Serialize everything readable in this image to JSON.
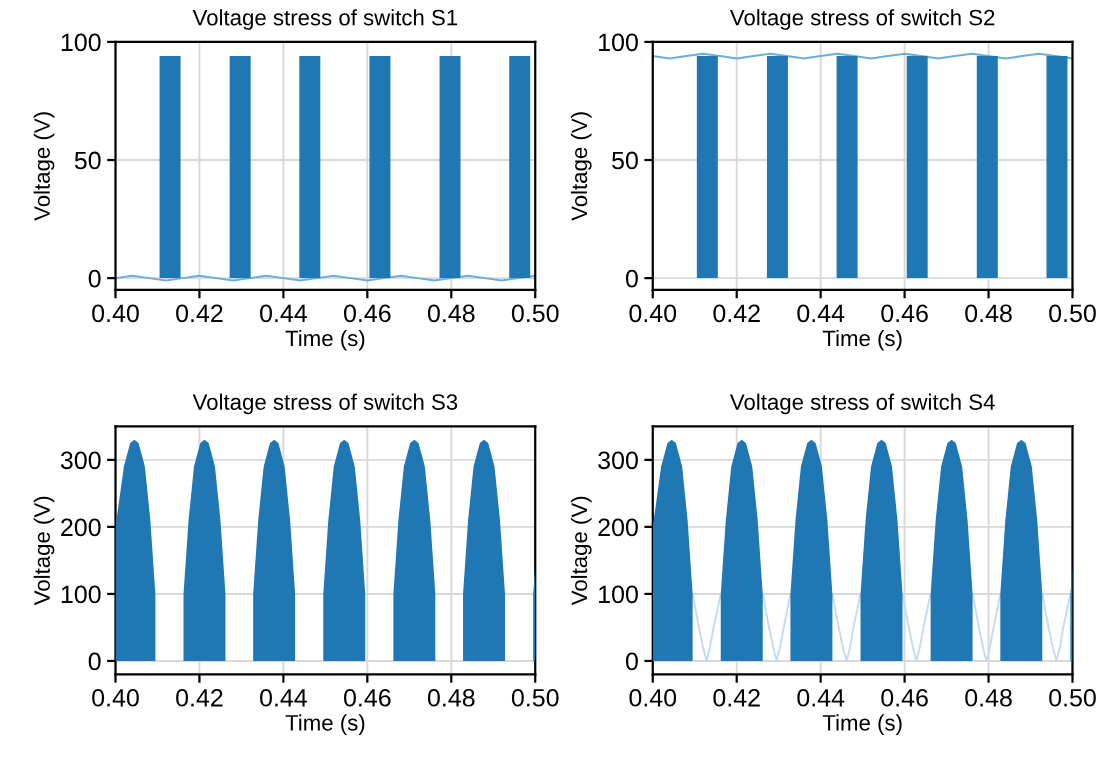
{
  "chart_data": [
    {
      "type": "area",
      "title": "Voltage stress of switch S1",
      "xlabel": "Time (s)",
      "ylabel": "Voltage (V)",
      "xlim": [
        0.4,
        0.5
      ],
      "ylim": [
        -5,
        100
      ],
      "xticks": [
        {
          "value": 0.4,
          "label": "0.40"
        },
        {
          "value": 0.42,
          "label": "0.42"
        },
        {
          "value": 0.44,
          "label": "0.44"
        },
        {
          "value": 0.46,
          "label": "0.46"
        },
        {
          "value": 0.48,
          "label": "0.48"
        },
        {
          "value": 0.5,
          "label": "0.50"
        }
      ],
      "yticks": [
        0,
        50,
        100
      ],
      "grid": true,
      "series": [
        {
          "type": "line",
          "color": "#6baed6",
          "x": [
            0.4,
            0.404,
            0.408,
            0.412,
            0.416,
            0.42,
            0.424,
            0.428,
            0.432,
            0.436,
            0.44,
            0.444,
            0.448,
            0.452,
            0.456,
            0.46,
            0.464,
            0.468,
            0.472,
            0.476,
            0.48,
            0.484,
            0.488,
            0.492,
            0.496,
            0.5
          ],
          "values": [
            0,
            1,
            0,
            -1,
            0,
            1,
            0,
            -1,
            0,
            1,
            0,
            -1,
            0,
            1,
            0,
            -1,
            0,
            1,
            0,
            -1,
            0,
            1,
            0,
            -1,
            0,
            1
          ]
        },
        {
          "color": "#1f77b4",
          "x": [
            0.4105,
            0.4105,
            0.4155,
            0.4155,
            0.4272,
            0.4272,
            0.4322,
            0.4322,
            0.4438,
            0.4438,
            0.4488,
            0.4488,
            0.4605,
            0.4605,
            0.4655,
            0.4655,
            0.4772,
            0.4772,
            0.4822,
            0.4822,
            0.4938,
            0.4938,
            0.4988,
            0.4988
          ],
          "values": [
            0,
            94,
            94,
            0,
            0,
            94,
            94,
            0,
            0,
            94,
            94,
            0,
            0,
            94,
            94,
            0,
            0,
            94,
            94,
            0,
            0,
            94,
            94,
            0
          ]
        }
      ]
    },
    {
      "type": "area",
      "title": "Voltage stress of switch S2",
      "xlabel": "Time (s)",
      "ylabel": "Voltage (V)",
      "xlim": [
        0.4,
        0.5
      ],
      "ylim": [
        -5,
        100
      ],
      "xticks": [
        {
          "value": 0.4,
          "label": "0.40"
        },
        {
          "value": 0.42,
          "label": "0.42"
        },
        {
          "value": 0.44,
          "label": "0.44"
        },
        {
          "value": 0.46,
          "label": "0.46"
        },
        {
          "value": 0.48,
          "label": "0.48"
        },
        {
          "value": 0.5,
          "label": "0.50"
        }
      ],
      "yticks": [
        0,
        50,
        100
      ],
      "grid": true,
      "series": [
        {
          "type": "line",
          "color": "#6baed6",
          "x": [
            0.4,
            0.404,
            0.408,
            0.412,
            0.416,
            0.42,
            0.424,
            0.428,
            0.432,
            0.436,
            0.44,
            0.444,
            0.448,
            0.452,
            0.456,
            0.46,
            0.464,
            0.468,
            0.472,
            0.476,
            0.48,
            0.484,
            0.488,
            0.492,
            0.496,
            0.5
          ],
          "values": [
            94,
            93,
            94,
            95,
            94,
            93,
            94,
            95,
            94,
            93,
            94,
            95,
            94,
            93,
            94,
            95,
            94,
            93,
            94,
            95,
            94,
            93,
            94,
            95,
            94,
            93
          ]
        },
        {
          "color": "#1f77b4",
          "x": [
            0.4105,
            0.4105,
            0.4155,
            0.4155,
            0.4272,
            0.4272,
            0.4322,
            0.4322,
            0.4438,
            0.4438,
            0.4488,
            0.4488,
            0.4605,
            0.4605,
            0.4655,
            0.4655,
            0.4772,
            0.4772,
            0.4822,
            0.4822,
            0.4938,
            0.4938,
            0.4988,
            0.4988
          ],
          "values": [
            0,
            94,
            94,
            0,
            0,
            94,
            94,
            0,
            0,
            94,
            94,
            0,
            0,
            94,
            94,
            0,
            0,
            94,
            94,
            0,
            0,
            94,
            94,
            0
          ]
        }
      ]
    },
    {
      "type": "area",
      "title": "Voltage stress of switch S3",
      "xlabel": "Time (s)",
      "ylabel": "Voltage (V)",
      "xlim": [
        0.4,
        0.5
      ],
      "ylim": [
        -20,
        350
      ],
      "xticks": [
        {
          "value": 0.4,
          "label": "0.40"
        },
        {
          "value": 0.42,
          "label": "0.42"
        },
        {
          "value": 0.44,
          "label": "0.44"
        },
        {
          "value": 0.46,
          "label": "0.46"
        },
        {
          "value": 0.48,
          "label": "0.48"
        },
        {
          "value": 0.5,
          "label": "0.50"
        }
      ],
      "yticks": [
        0,
        100,
        200,
        300
      ],
      "grid": true,
      "series": [
        {
          "color": "#1f77b4",
          "x": [
            0.4,
            0.4,
            0.402,
            0.4035,
            0.4045,
            0.4055,
            0.407,
            0.4083,
            0.4095,
            0.4095,
            0.4162,
            0.4162,
            0.4174,
            0.4187,
            0.4202,
            0.4212,
            0.4222,
            0.4237,
            0.425,
            0.4262,
            0.4262,
            0.4328,
            0.4328,
            0.434,
            0.4353,
            0.4368,
            0.4378,
            0.4388,
            0.4403,
            0.4416,
            0.4428,
            0.4428,
            0.4495,
            0.4495,
            0.4507,
            0.452,
            0.4535,
            0.4545,
            0.4555,
            0.457,
            0.4583,
            0.4595,
            0.4595,
            0.4662,
            0.4662,
            0.4674,
            0.4687,
            0.4702,
            0.4712,
            0.4722,
            0.4737,
            0.475,
            0.4762,
            0.4762,
            0.4828,
            0.4828,
            0.484,
            0.4853,
            0.4868,
            0.4878,
            0.4888,
            0.4903,
            0.4916,
            0.4928,
            0.4928,
            0.4995,
            0.4995,
            0.5
          ],
          "values": [
            0,
            200,
            290,
            325,
            330,
            325,
            290,
            210,
            100,
            0,
            0,
            100,
            210,
            290,
            325,
            330,
            325,
            290,
            210,
            100,
            0,
            0,
            100,
            210,
            290,
            325,
            330,
            325,
            290,
            210,
            100,
            0,
            0,
            100,
            210,
            290,
            325,
            330,
            325,
            290,
            210,
            100,
            0,
            0,
            100,
            210,
            290,
            325,
            330,
            325,
            290,
            210,
            100,
            0,
            0,
            100,
            210,
            290,
            325,
            330,
            325,
            290,
            210,
            100,
            0,
            0,
            100,
            140
          ]
        }
      ]
    },
    {
      "type": "area",
      "title": "Voltage stress of switch S4",
      "xlabel": "Time (s)",
      "ylabel": "Voltage (V)",
      "xlim": [
        0.4,
        0.5
      ],
      "ylim": [
        -20,
        350
      ],
      "xticks": [
        {
          "value": 0.4,
          "label": "0.40"
        },
        {
          "value": 0.42,
          "label": "0.42"
        },
        {
          "value": 0.44,
          "label": "0.44"
        },
        {
          "value": 0.46,
          "label": "0.46"
        },
        {
          "value": 0.48,
          "label": "0.48"
        },
        {
          "value": 0.5,
          "label": "0.50"
        }
      ],
      "yticks": [
        0,
        100,
        200,
        300
      ],
      "grid": true,
      "series": [
        {
          "type": "line",
          "color": "#c6dbef",
          "x": [
            0.4095,
            0.411,
            0.412,
            0.4128,
            0.4136,
            0.4145,
            0.4162
          ],
          "values": [
            100,
            50,
            20,
            0,
            20,
            50,
            100
          ]
        },
        {
          "type": "line",
          "color": "#c6dbef",
          "x": [
            0.4262,
            0.4277,
            0.4287,
            0.4295,
            0.4303,
            0.4312,
            0.4328
          ],
          "values": [
            100,
            50,
            20,
            0,
            20,
            50,
            100
          ]
        },
        {
          "type": "line",
          "color": "#c6dbef",
          "x": [
            0.4428,
            0.4443,
            0.4453,
            0.4462,
            0.447,
            0.4478,
            0.4495
          ],
          "values": [
            100,
            50,
            20,
            0,
            20,
            50,
            100
          ]
        },
        {
          "type": "line",
          "color": "#c6dbef",
          "x": [
            0.4595,
            0.461,
            0.462,
            0.4628,
            0.4636,
            0.4645,
            0.4662
          ],
          "values": [
            100,
            50,
            20,
            0,
            20,
            50,
            100
          ]
        },
        {
          "type": "line",
          "color": "#c6dbef",
          "x": [
            0.4762,
            0.4777,
            0.4787,
            0.4791,
            0.4795,
            0.4799,
            0.4803,
            0.4812,
            0.4828
          ],
          "values": [
            100,
            50,
            20,
            8,
            2,
            8,
            20,
            50,
            100
          ]
        },
        {
          "type": "line",
          "color": "#c6dbef",
          "x": [
            0.4928,
            0.4943,
            0.4953,
            0.4962,
            0.497,
            0.4978,
            0.4995
          ],
          "values": [
            100,
            50,
            20,
            0,
            20,
            50,
            100
          ]
        },
        {
          "color": "#1f77b4",
          "x": [
            0.4,
            0.4,
            0.402,
            0.4035,
            0.4045,
            0.4055,
            0.407,
            0.4083,
            0.4095,
            0.4095,
            0.4162,
            0.4162,
            0.4174,
            0.4187,
            0.4202,
            0.4212,
            0.4222,
            0.4237,
            0.425,
            0.4262,
            0.4262,
            0.4328,
            0.4328,
            0.434,
            0.4353,
            0.4368,
            0.4378,
            0.4388,
            0.4403,
            0.4416,
            0.4428,
            0.4428,
            0.4495,
            0.4495,
            0.4507,
            0.452,
            0.4535,
            0.4545,
            0.4555,
            0.457,
            0.4583,
            0.4595,
            0.4595,
            0.4662,
            0.4662,
            0.4674,
            0.4687,
            0.4702,
            0.4712,
            0.4722,
            0.4737,
            0.475,
            0.4762,
            0.4762,
            0.4828,
            0.4828,
            0.484,
            0.4853,
            0.4868,
            0.4878,
            0.4888,
            0.4903,
            0.4916,
            0.4928,
            0.4928,
            0.4995,
            0.4995,
            0.5
          ],
          "values": [
            0,
            200,
            290,
            325,
            330,
            325,
            290,
            210,
            100,
            0,
            0,
            100,
            210,
            290,
            325,
            330,
            325,
            290,
            210,
            100,
            0,
            0,
            100,
            210,
            290,
            325,
            330,
            325,
            290,
            210,
            100,
            0,
            0,
            100,
            210,
            290,
            325,
            330,
            325,
            290,
            210,
            100,
            0,
            0,
            100,
            210,
            290,
            325,
            330,
            325,
            290,
            210,
            100,
            0,
            0,
            100,
            210,
            290,
            325,
            330,
            325,
            290,
            210,
            100,
            0,
            0,
            100,
            140
          ]
        }
      ]
    }
  ]
}
